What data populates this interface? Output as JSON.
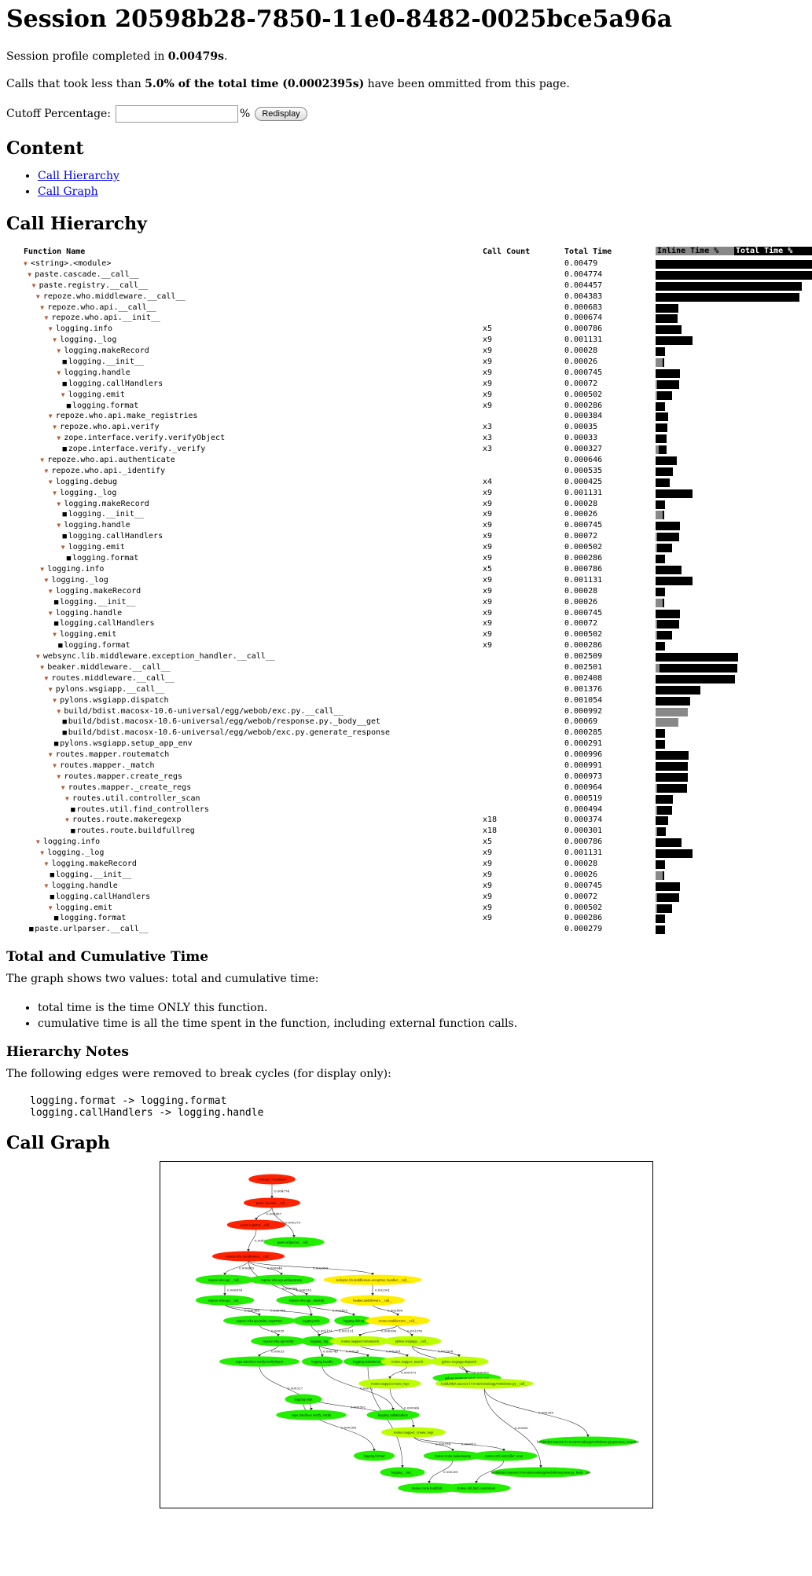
{
  "page": {
    "title": "Session 20598b28-7850-11e0-8482-0025bce5a96a",
    "completed_prefix": "Session profile completed in ",
    "completed_value": "0.00479s",
    "completed_suffix": ".",
    "omit_prefix": "Calls that took less than ",
    "omit_bold": "5.0% of the total time (0.0002395s)",
    "omit_suffix": " have been ommitted from this page.",
    "cutoff_label": "Cutoff Percentage:",
    "cutoff_value": "",
    "percent_sign": "%",
    "redisplay_label": "Redisplay"
  },
  "content": {
    "heading": "Content",
    "links": [
      "Call Hierarchy",
      "Call Graph"
    ]
  },
  "hierarchy": {
    "heading": "Call Hierarchy",
    "columns": {
      "name": "Function Name",
      "count": "Call Count",
      "total": "Total Time",
      "inline_pct": "Inline Time %",
      "total_pct": "Total Time %"
    },
    "rows": [
      {
        "d": 0,
        "n": "<string>.<module>",
        "c": "",
        "t": "0.00479",
        "e": 1,
        "ip": 0.0
      },
      {
        "d": 1,
        "n": "paste.cascade.__call__",
        "c": "",
        "t": "0.004774",
        "e": 1,
        "ip": 0.0
      },
      {
        "d": 2,
        "n": "paste.registry.__call__",
        "c": "",
        "t": "0.004457",
        "e": 1,
        "ip": 0.0
      },
      {
        "d": 3,
        "n": "repoze.who.middleware.__call__",
        "c": "",
        "t": "0.004383",
        "e": 1,
        "ip": 0.0
      },
      {
        "d": 4,
        "n": "repoze.who.api.__call__",
        "c": "",
        "t": "0.000683",
        "e": 1,
        "ip": 0.0
      },
      {
        "d": 5,
        "n": "repoze.who.api.__init__",
        "c": "",
        "t": "0.000674",
        "e": 1,
        "ip": 0.0
      },
      {
        "d": 6,
        "n": "logging.info",
        "c": "x5",
        "t": "0.000786",
        "e": 1,
        "ip": 0.0
      },
      {
        "d": 7,
        "n": "logging._log",
        "c": "x9",
        "t": "0.001131",
        "e": 1,
        "ip": 0.0
      },
      {
        "d": 8,
        "n": "logging.makeRecord",
        "c": "x9",
        "t": "0.00028",
        "e": 1,
        "ip": 0.0
      },
      {
        "d": 9,
        "n": "logging.__init__",
        "c": "x9",
        "t": "0.00026",
        "e": 0,
        "ip": 0.8
      },
      {
        "d": 8,
        "n": "logging.handle",
        "c": "x9",
        "t": "0.000745",
        "e": 1,
        "ip": 0.0
      },
      {
        "d": 9,
        "n": "logging.callHandlers",
        "c": "x9",
        "t": "0.00072",
        "e": 0,
        "ip": 0.05
      },
      {
        "d": 9,
        "n": "logging.emit",
        "c": "x9",
        "t": "0.000502",
        "e": 1,
        "ip": 0.1
      },
      {
        "d": 10,
        "n": "logging.format",
        "c": "x9",
        "t": "0.000286",
        "e": 0,
        "ip": 0.0
      },
      {
        "d": 6,
        "n": "repoze.who.api.make_registries",
        "c": "",
        "t": "0.000384",
        "e": 1,
        "ip": 0.0
      },
      {
        "d": 7,
        "n": "repoze.who.api.verify",
        "c": "x3",
        "t": "0.00035",
        "e": 1,
        "ip": 0.0
      },
      {
        "d": 8,
        "n": "zope.interface.verify.verifyObject",
        "c": "x3",
        "t": "0.00033",
        "e": 1,
        "ip": 0.0
      },
      {
        "d": 9,
        "n": "zope.interface.verify._verify",
        "c": "x3",
        "t": "0.000327",
        "e": 0,
        "ip": 0.3
      },
      {
        "d": 4,
        "n": "repoze.who.api.authenticate",
        "c": "",
        "t": "0.000646",
        "e": 1,
        "ip": 0.0
      },
      {
        "d": 5,
        "n": "repoze.who.api._identify",
        "c": "",
        "t": "0.000535",
        "e": 1,
        "ip": 0.0
      },
      {
        "d": 6,
        "n": "logging.debug",
        "c": "x4",
        "t": "0.000425",
        "e": 1,
        "ip": 0.0
      },
      {
        "d": 7,
        "n": "logging._log",
        "c": "x9",
        "t": "0.001131",
        "e": 1,
        "ip": 0.0
      },
      {
        "d": 8,
        "n": "logging.makeRecord",
        "c": "x9",
        "t": "0.00028",
        "e": 1,
        "ip": 0.0
      },
      {
        "d": 9,
        "n": "logging.__init__",
        "c": "x9",
        "t": "0.00026",
        "e": 0,
        "ip": 0.8
      },
      {
        "d": 8,
        "n": "logging.handle",
        "c": "x9",
        "t": "0.000745",
        "e": 1,
        "ip": 0.0
      },
      {
        "d": 9,
        "n": "logging.callHandlers",
        "c": "x9",
        "t": "0.00072",
        "e": 0,
        "ip": 0.05
      },
      {
        "d": 9,
        "n": "logging.emit",
        "c": "x9",
        "t": "0.000502",
        "e": 1,
        "ip": 0.1
      },
      {
        "d": 10,
        "n": "logging.format",
        "c": "x9",
        "t": "0.000286",
        "e": 0,
        "ip": 0.0
      },
      {
        "d": 4,
        "n": "logging.info",
        "c": "x5",
        "t": "0.000786",
        "e": 1,
        "ip": 0.0
      },
      {
        "d": 5,
        "n": "logging._log",
        "c": "x9",
        "t": "0.001131",
        "e": 1,
        "ip": 0.0
      },
      {
        "d": 6,
        "n": "logging.makeRecord",
        "c": "x9",
        "t": "0.00028",
        "e": 1,
        "ip": 0.0
      },
      {
        "d": 7,
        "n": "logging.__init__",
        "c": "x9",
        "t": "0.00026",
        "e": 0,
        "ip": 0.8
      },
      {
        "d": 6,
        "n": "logging.handle",
        "c": "x9",
        "t": "0.000745",
        "e": 1,
        "ip": 0.0
      },
      {
        "d": 7,
        "n": "logging.callHandlers",
        "c": "x9",
        "t": "0.00072",
        "e": 0,
        "ip": 0.05
      },
      {
        "d": 7,
        "n": "logging.emit",
        "c": "x9",
        "t": "0.000502",
        "e": 1,
        "ip": 0.1
      },
      {
        "d": 8,
        "n": "logging.format",
        "c": "x9",
        "t": "0.000286",
        "e": 0,
        "ip": 0.0
      },
      {
        "d": 3,
        "n": "websync.lib.middleware.exception_handler.__call__",
        "c": "",
        "t": "0.002509",
        "e": 1,
        "ip": 0.0
      },
      {
        "d": 4,
        "n": "beaker.middleware.__call__",
        "c": "",
        "t": "0.002501",
        "e": 1,
        "ip": 0.05
      },
      {
        "d": 5,
        "n": "routes.middleware.__call__",
        "c": "",
        "t": "0.002408",
        "e": 1,
        "ip": 0.0
      },
      {
        "d": 6,
        "n": "pylons.wsgiapp.__call__",
        "c": "",
        "t": "0.001376",
        "e": 1,
        "ip": 0.0
      },
      {
        "d": 7,
        "n": "pylons.wsgiapp.dispatch",
        "c": "",
        "t": "0.001054",
        "e": 1,
        "ip": 0.0
      },
      {
        "d": 8,
        "n": "build/bdist.macosx-10.6-universal/egg/webob/exc.py.__call__",
        "c": "",
        "t": "0.000992",
        "e": 1,
        "ip": 1.0
      },
      {
        "d": 9,
        "n": "build/bdist.macosx-10.6-universal/egg/webob/response.py._body__get",
        "c": "",
        "t": "0.00069",
        "e": 0,
        "ip": 1.0
      },
      {
        "d": 9,
        "n": "build/bdist.macosx-10.6-universal/egg/webob/exc.py.generate_response",
        "c": "",
        "t": "0.000285",
        "e": 0,
        "ip": 0.0
      },
      {
        "d": 7,
        "n": "pylons.wsgiapp.setup_app_env",
        "c": "",
        "t": "0.000291",
        "e": 0,
        "ip": 0.0
      },
      {
        "d": 6,
        "n": "routes.mapper.routematch",
        "c": "",
        "t": "0.000996",
        "e": 1,
        "ip": 0.0
      },
      {
        "d": 7,
        "n": "routes.mapper._match",
        "c": "",
        "t": "0.000991",
        "e": 1,
        "ip": 0.0
      },
      {
        "d": 8,
        "n": "routes.mapper.create_regs",
        "c": "",
        "t": "0.000973",
        "e": 1,
        "ip": 0.0
      },
      {
        "d": 9,
        "n": "routes.mapper._create_regs",
        "c": "",
        "t": "0.000964",
        "e": 1,
        "ip": 0.05
      },
      {
        "d": 10,
        "n": "routes.util.controller_scan",
        "c": "",
        "t": "0.000519",
        "e": 1,
        "ip": 0.0
      },
      {
        "d": 11,
        "n": "routes.util.find_controllers",
        "c": "",
        "t": "0.000494",
        "e": 0,
        "ip": 0.05
      },
      {
        "d": 10,
        "n": "routes.route.makeregexp",
        "c": "x18",
        "t": "0.000374",
        "e": 1,
        "ip": 0.0
      },
      {
        "d": 11,
        "n": "routes.route.buildfullreg",
        "c": "x18",
        "t": "0.000301",
        "e": 0,
        "ip": 0.05
      },
      {
        "d": 3,
        "n": "logging.info",
        "c": "x5",
        "t": "0.000786",
        "e": 1,
        "ip": 0.0
      },
      {
        "d": 4,
        "n": "logging._log",
        "c": "x9",
        "t": "0.001131",
        "e": 1,
        "ip": 0.0
      },
      {
        "d": 5,
        "n": "logging.makeRecord",
        "c": "x9",
        "t": "0.00028",
        "e": 1,
        "ip": 0.0
      },
      {
        "d": 6,
        "n": "logging.__init__",
        "c": "x9",
        "t": "0.00026",
        "e": 0,
        "ip": 0.8
      },
      {
        "d": 5,
        "n": "logging.handle",
        "c": "x9",
        "t": "0.000745",
        "e": 1,
        "ip": 0.0
      },
      {
        "d": 6,
        "n": "logging.callHandlers",
        "c": "x9",
        "t": "0.00072",
        "e": 0,
        "ip": 0.05
      },
      {
        "d": 6,
        "n": "logging.emit",
        "c": "x9",
        "t": "0.000502",
        "e": 1,
        "ip": 0.1
      },
      {
        "d": 7,
        "n": "logging.format",
        "c": "x9",
        "t": "0.000286",
        "e": 0,
        "ip": 0.0
      },
      {
        "d": 1,
        "n": "paste.urlparser.__call__",
        "c": "",
        "t": "0.000279",
        "e": 0,
        "ip": 0.0
      }
    ]
  },
  "total_cumulative": {
    "heading": "Total and Cumulative Time",
    "intro": "The graph shows two values: total and cumulative time:",
    "items": [
      "total time is the time ONLY this function.",
      "cumulative time is all the time spent in the function, including external function calls."
    ]
  },
  "notes": {
    "heading": "Hierarchy Notes",
    "intro": "The following edges were removed to break cycles (for display only):",
    "edges": [
      "logging.format -> logging.format",
      "logging.callHandlers -> logging.handle"
    ]
  },
  "graph": {
    "heading": "Call Graph",
    "colors": {
      "hot": "#ff2200",
      "warm": "#ffee00",
      "mid": "#bbff00",
      "cool": "#22ee00",
      "edge": "#333333",
      "border": "#000000"
    },
    "nodes": [
      {
        "id": "n0",
        "label": "<string>.<module>",
        "heat": "hot"
      },
      {
        "id": "n1",
        "label": "paste.cascade.__call__",
        "heat": "hot"
      },
      {
        "id": "n2",
        "label": "paste.registry.__call__",
        "heat": "hot"
      },
      {
        "id": "n3",
        "label": "paste.urlparser.__call__",
        "heat": "cool"
      },
      {
        "id": "n4",
        "label": "repoze.who.middleware.__call__",
        "heat": "hot"
      },
      {
        "id": "n5",
        "label": "repoze.who.api.__call__",
        "heat": "cool"
      },
      {
        "id": "n6",
        "label": "repoze.who.api.authenticate",
        "heat": "cool"
      },
      {
        "id": "n7",
        "label": "websync.lib.middleware.exception_handler.__call__",
        "heat": "warm"
      },
      {
        "id": "n8",
        "label": "repoze.who.api.__init__",
        "heat": "cool"
      },
      {
        "id": "n9",
        "label": "repoze.who.api._identify",
        "heat": "cool"
      },
      {
        "id": "n10",
        "label": "beaker.middleware.__call__",
        "heat": "warm"
      },
      {
        "id": "n11",
        "label": "repoze.who.api.make_registries",
        "heat": "cool"
      },
      {
        "id": "n12",
        "label": "logging.info",
        "heat": "cool"
      },
      {
        "id": "n13",
        "label": "logging.debug",
        "heat": "cool"
      },
      {
        "id": "n14",
        "label": "routes.middleware.__call__",
        "heat": "warm"
      },
      {
        "id": "n15",
        "label": "repoze.who.api.verify",
        "heat": "cool"
      },
      {
        "id": "n16",
        "label": "logging._log",
        "heat": "cool"
      },
      {
        "id": "n17",
        "label": "routes.mapper.routematch",
        "heat": "mid"
      },
      {
        "id": "n18",
        "label": "pylons.wsgiapp.__call__",
        "heat": "mid"
      },
      {
        "id": "n19",
        "label": "zope.interface.verify.verifyObject",
        "heat": "cool"
      },
      {
        "id": "n20",
        "label": "logging.handle",
        "heat": "cool"
      },
      {
        "id": "n21",
        "label": "logging.makeRecord",
        "heat": "cool"
      },
      {
        "id": "n22",
        "label": "routes.mapper._match",
        "heat": "mid"
      },
      {
        "id": "n23",
        "label": "pylons.wsgiapp.dispatch",
        "heat": "mid"
      },
      {
        "id": "n24",
        "label": "pylons.wsgiapp.setup_app_env",
        "heat": "cool"
      },
      {
        "id": "n25",
        "label": "routes.mapper.create_regs",
        "heat": "mid"
      },
      {
        "id": "n26",
        "label": "build/bdist.macosx-10.6-universal/egg/webob/exc.py.__call__",
        "heat": "mid"
      },
      {
        "id": "n27",
        "label": "logging.emit",
        "heat": "cool"
      },
      {
        "id": "n28",
        "label": "zope.interface.verify._verify",
        "heat": "cool"
      },
      {
        "id": "n29",
        "label": "logging.callHandlers",
        "heat": "cool"
      },
      {
        "id": "n30",
        "label": "routes.mapper._create_regs",
        "heat": "mid"
      },
      {
        "id": "n31",
        "label": "build/bdist.macosx-10.6-universal/egg/webob/exc.py.generate_response",
        "heat": "cool"
      },
      {
        "id": "n32",
        "label": "logging.format",
        "heat": "cool"
      },
      {
        "id": "n33",
        "label": "routes.route.makeregexp",
        "heat": "cool"
      },
      {
        "id": "n34",
        "label": "routes.util.controller_scan",
        "heat": "cool"
      },
      {
        "id": "n35",
        "label": "build/bdist.macosx-10.6-universal/egg/webob/response.py._body__get",
        "heat": "cool"
      },
      {
        "id": "n36",
        "label": "logging.__init__",
        "heat": "cool"
      },
      {
        "id": "n37",
        "label": "routes.route.buildfullreg",
        "heat": "cool"
      },
      {
        "id": "n38",
        "label": "routes.util.find_controllers",
        "heat": "cool"
      }
    ],
    "edges": [
      {
        "from": "n0",
        "to": "n1",
        "label": "0.004774"
      },
      {
        "from": "n1",
        "to": "n2",
        "label": "0.004457"
      },
      {
        "from": "n1",
        "to": "n3",
        "label": "0.000279"
      },
      {
        "from": "n2",
        "to": "n4",
        "label": "0.004383"
      },
      {
        "from": "n4",
        "to": "n5",
        "label": "0.000683"
      },
      {
        "from": "n4",
        "to": "n6",
        "label": "0.000646"
      },
      {
        "from": "n4",
        "to": "n7",
        "label": "0.002509"
      },
      {
        "from": "n4",
        "to": "n12",
        "label": "0.000786"
      },
      {
        "from": "n5",
        "to": "n8",
        "label": "0.000674"
      },
      {
        "from": "n6",
        "to": "n9",
        "label": "0.000535"
      },
      {
        "from": "n7",
        "to": "n10",
        "label": "0.002501"
      },
      {
        "from": "n8",
        "to": "n11",
        "label": "0.000384"
      },
      {
        "from": "n8",
        "to": "n12",
        "label": "0.000786"
      },
      {
        "from": "n9",
        "to": "n13",
        "label": "0.000425"
      },
      {
        "from": "n10",
        "to": "n14",
        "label": "0.002408"
      },
      {
        "from": "n11",
        "to": "n15",
        "label": "0.00035"
      },
      {
        "from": "n12",
        "to": "n16",
        "label": "0.001131"
      },
      {
        "from": "n13",
        "to": "n16",
        "label": "0.001131"
      },
      {
        "from": "n14",
        "to": "n17",
        "label": "0.000996"
      },
      {
        "from": "n14",
        "to": "n18",
        "label": "0.001376"
      },
      {
        "from": "n15",
        "to": "n19",
        "label": "0.00033"
      },
      {
        "from": "n16",
        "to": "n20",
        "label": "0.000745"
      },
      {
        "from": "n16",
        "to": "n21",
        "label": "0.00028"
      },
      {
        "from": "n17",
        "to": "n22",
        "label": "0.000991"
      },
      {
        "from": "n18",
        "to": "n23",
        "label": "0.001054"
      },
      {
        "from": "n18",
        "to": "n24",
        "label": "0.000291"
      },
      {
        "from": "n22",
        "to": "n25",
        "label": "0.000973"
      },
      {
        "from": "n23",
        "to": "n26",
        "label": "0.000992"
      },
      {
        "from": "n20",
        "to": "n29",
        "label": "0.00072"
      },
      {
        "from": "n19",
        "to": "n28",
        "label": "0.000327"
      },
      {
        "from": "n29",
        "to": "n27",
        "label": "0.000502"
      },
      {
        "from": "n25",
        "to": "n30",
        "label": "0.000964"
      },
      {
        "from": "n26",
        "to": "n31",
        "label": "0.000285"
      },
      {
        "from": "n26",
        "to": "n35",
        "label": "0.00069"
      },
      {
        "from": "n27",
        "to": "n32",
        "label": "0.000286"
      },
      {
        "from": "n30",
        "to": "n33",
        "label": "0.000374"
      },
      {
        "from": "n30",
        "to": "n34",
        "label": "0.000519"
      },
      {
        "from": "n21",
        "to": "n36",
        "label": "0.00026"
      },
      {
        "from": "n33",
        "to": "n37",
        "label": "0.000301"
      },
      {
        "from": "n34",
        "to": "n38",
        "label": "0.000494"
      }
    ]
  }
}
